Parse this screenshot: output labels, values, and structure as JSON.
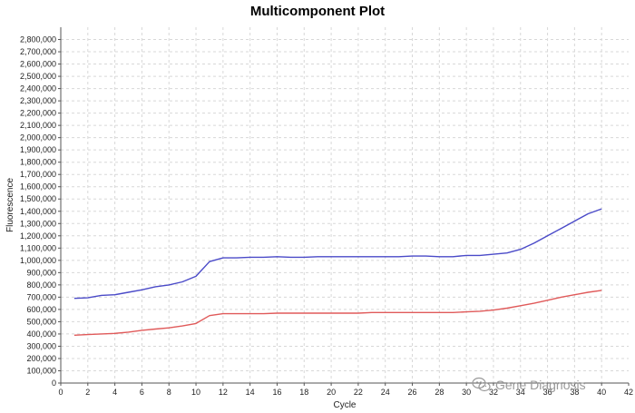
{
  "chart_data": {
    "type": "line",
    "title": "Multicomponent Plot",
    "xlabel": "Cycle",
    "ylabel": "Fluorescence",
    "xlim": [
      0,
      42
    ],
    "ylim": [
      0,
      2900000
    ],
    "x_ticks": [
      0,
      2,
      4,
      6,
      8,
      10,
      12,
      14,
      16,
      18,
      20,
      22,
      24,
      26,
      28,
      30,
      32,
      34,
      36,
      38,
      40,
      42
    ],
    "y_ticks": [
      0,
      100000,
      200000,
      300000,
      400000,
      500000,
      600000,
      700000,
      800000,
      900000,
      1000000,
      1100000,
      1200000,
      1300000,
      1400000,
      1500000,
      1600000,
      1700000,
      1800000,
      1900000,
      2000000,
      2100000,
      2200000,
      2300000,
      2400000,
      2500000,
      2600000,
      2700000,
      2800000
    ],
    "y_tick_labels": [
      "0",
      "100,000",
      "200,000",
      "300,000",
      "400,000",
      "500,000",
      "600,000",
      "700,000",
      "800,000",
      "900,000",
      "1,000,000",
      "1,100,000",
      "1,200,000",
      "1,300,000",
      "1,400,000",
      "1,500,000",
      "1,600,000",
      "1,700,000",
      "1,800,000",
      "1,900,000",
      "2,000,000",
      "2,100,000",
      "2,200,000",
      "2,300,000",
      "2,400,000",
      "2,500,000",
      "2,600,000",
      "2,700,000",
      "2,800,000"
    ],
    "grid": true,
    "x": [
      1,
      2,
      3,
      4,
      5,
      6,
      7,
      8,
      9,
      10,
      11,
      12,
      13,
      14,
      15,
      16,
      17,
      18,
      19,
      20,
      21,
      22,
      23,
      24,
      25,
      26,
      27,
      28,
      29,
      30,
      31,
      32,
      33,
      34,
      35,
      36,
      37,
      38,
      39,
      40
    ],
    "series": [
      {
        "color": "#4a4ac8",
        "values": [
          690000,
          695000,
          715000,
          720000,
          740000,
          760000,
          785000,
          800000,
          825000,
          870000,
          990000,
          1020000,
          1020000,
          1025000,
          1025000,
          1030000,
          1025000,
          1025000,
          1030000,
          1030000,
          1030000,
          1030000,
          1030000,
          1030000,
          1030000,
          1035000,
          1035000,
          1030000,
          1030000,
          1040000,
          1040000,
          1050000,
          1060000,
          1090000,
          1140000,
          1200000,
          1260000,
          1320000,
          1380000,
          1420000
        ]
      },
      {
        "color": "#e05a5a",
        "values": [
          390000,
          395000,
          400000,
          405000,
          415000,
          430000,
          440000,
          450000,
          465000,
          485000,
          550000,
          565000,
          565000,
          565000,
          565000,
          570000,
          570000,
          570000,
          570000,
          570000,
          570000,
          570000,
          575000,
          575000,
          575000,
          575000,
          575000,
          575000,
          575000,
          580000,
          585000,
          595000,
          610000,
          630000,
          650000,
          675000,
          700000,
          720000,
          740000,
          755000
        ]
      }
    ]
  },
  "watermark": {
    "text": "Gene Diagnosis",
    "icon": "wechat-icon"
  }
}
